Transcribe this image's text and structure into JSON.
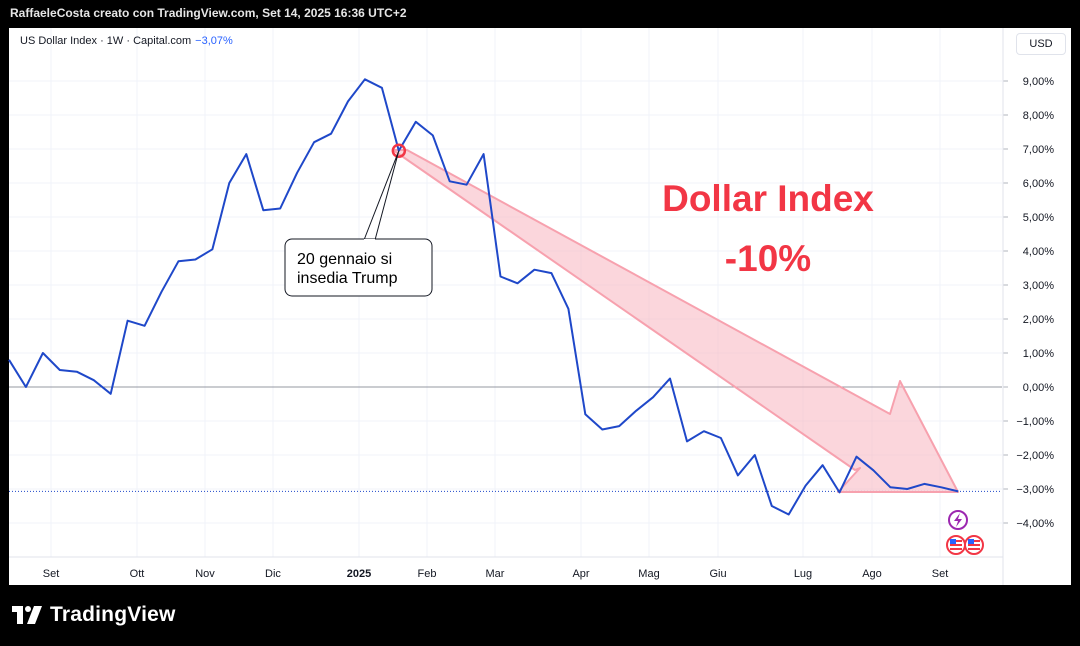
{
  "header": {
    "attribution": "RaffaeleCosta creato con TradingView.com, Set 14, 2025 16:36 UTC+2"
  },
  "legend": {
    "symbol": "US Dollar Index · 1W · Capital.com",
    "change": "−3,07%"
  },
  "currency_button": "USD",
  "footer": {
    "brand": "TradingView"
  },
  "colors": {
    "line": "#1f48c9",
    "arrow": "#f44d63",
    "headline": "#f23645",
    "accent": "#2962ff"
  },
  "icons": [
    "lightning-event-icon",
    "us-flag-event-icon"
  ],
  "chart_data": {
    "type": "line",
    "title": "Dollar Index",
    "subtitle": "-10%",
    "ylim": [
      -5.0,
      10.5
    ],
    "y_unit": "%",
    "y_ticks": [
      9,
      8,
      7,
      6,
      5,
      4,
      3,
      2,
      1,
      0,
      -1,
      -2,
      -3,
      -4
    ],
    "y_tick_labels": [
      "9,00%",
      "8,00%",
      "7,00%",
      "6,00%",
      "5,00%",
      "4,00%",
      "3,00%",
      "2,00%",
      "1,00%",
      "0,00%",
      "−1,00%",
      "−2,00%",
      "−3,00%",
      "−4,00%"
    ],
    "x_tick_labels": [
      "Set",
      "Ott",
      "Nov",
      "Dic",
      "2025",
      "Feb",
      "Mar",
      "Apr",
      "Mag",
      "Giu",
      "Lug",
      "Ago",
      "Set"
    ],
    "grid": true,
    "current_value": -3.07,
    "annotation": {
      "text_line1": "20 gennaio si",
      "text_line2": "insedia Trump"
    },
    "series": [
      {
        "values": [
          0.8,
          0.0,
          1.0,
          0.5,
          0.45,
          0.2,
          -0.2,
          1.95,
          1.8,
          2.8,
          3.7,
          3.75,
          4.05,
          6.0,
          6.85,
          5.2,
          5.25,
          6.3,
          7.2,
          7.45,
          8.4,
          9.05,
          8.8,
          6.95,
          7.8,
          7.4,
          6.05,
          5.95,
          6.85,
          3.25,
          3.05,
          3.45,
          3.35,
          2.3,
          -0.8,
          -1.25,
          -1.15,
          -0.7,
          -0.3,
          0.25,
          -1.6,
          -1.3,
          -1.5,
          -2.6,
          -2.0,
          -3.5,
          -3.75,
          -2.9,
          -2.3,
          -3.1,
          -2.05,
          -2.45,
          -2.95,
          -3.0,
          -2.85,
          -2.95,
          -3.07
        ]
      }
    ]
  }
}
